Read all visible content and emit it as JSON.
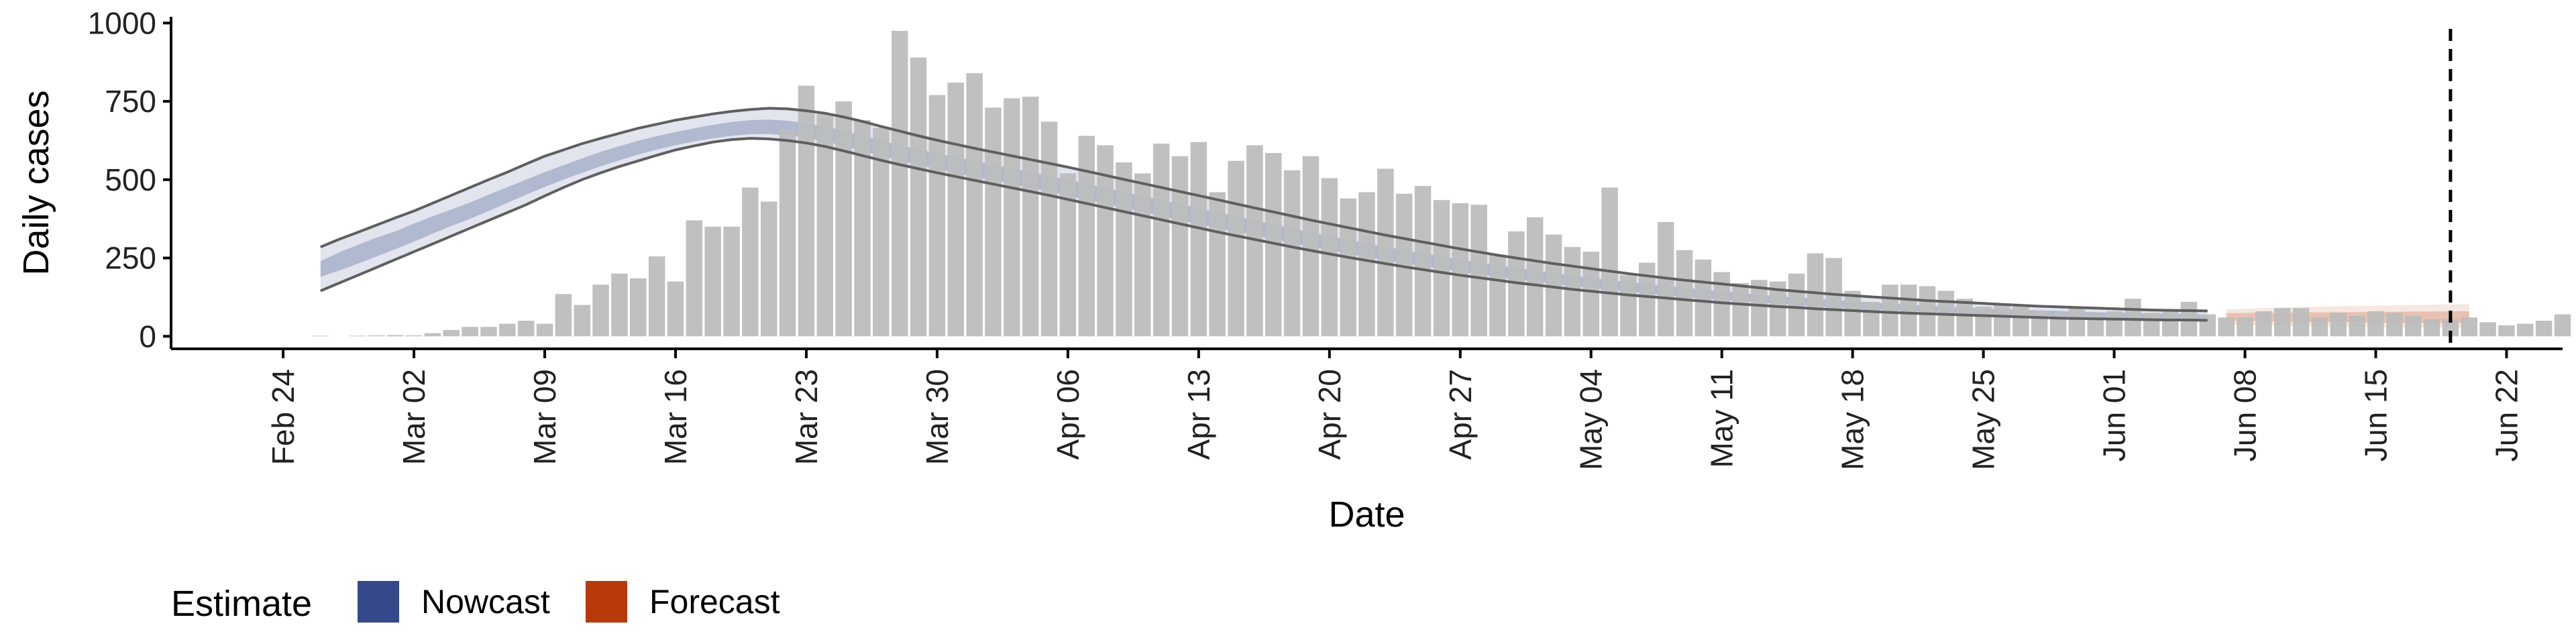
{
  "chart_data": {
    "type": "bar",
    "xlabel": "Date",
    "ylabel": "Daily cases",
    "ylim": [
      -40,
      1020
    ],
    "yticks": [
      0,
      250,
      500,
      750,
      1000
    ],
    "xlim": [
      "2020-02-18",
      "2020-06-25"
    ],
    "xticks": [
      {
        "date": "2020-02-24",
        "label": "Feb 24"
      },
      {
        "date": "2020-03-02",
        "label": "Mar 02"
      },
      {
        "date": "2020-03-09",
        "label": "Mar 09"
      },
      {
        "date": "2020-03-16",
        "label": "Mar 16"
      },
      {
        "date": "2020-03-23",
        "label": "Mar 23"
      },
      {
        "date": "2020-03-30",
        "label": "Mar 30"
      },
      {
        "date": "2020-04-06",
        "label": "Apr 06"
      },
      {
        "date": "2020-04-13",
        "label": "Apr 13"
      },
      {
        "date": "2020-04-20",
        "label": "Apr 20"
      },
      {
        "date": "2020-04-27",
        "label": "Apr 27"
      },
      {
        "date": "2020-05-04",
        "label": "May 04"
      },
      {
        "date": "2020-05-11",
        "label": "May 11"
      },
      {
        "date": "2020-05-18",
        "label": "May 18"
      },
      {
        "date": "2020-05-25",
        "label": "May 25"
      },
      {
        "date": "2020-06-01",
        "label": "Jun 01"
      },
      {
        "date": "2020-06-08",
        "label": "Jun 08"
      },
      {
        "date": "2020-06-15",
        "label": "Jun 15"
      },
      {
        "date": "2020-06-22",
        "label": "Jun 22"
      }
    ],
    "bar_start_date": "2020-02-26",
    "bars": [
      2,
      0,
      2,
      3,
      4,
      3,
      10,
      20,
      30,
      30,
      40,
      50,
      40,
      135,
      100,
      165,
      200,
      185,
      255,
      175,
      370,
      350,
      350,
      475,
      430,
      660,
      800,
      710,
      750,
      690,
      665,
      975,
      890,
      770,
      810,
      840,
      730,
      760,
      765,
      685,
      520,
      640,
      610,
      555,
      520,
      615,
      575,
      620,
      460,
      560,
      610,
      585,
      530,
      575,
      505,
      440,
      460,
      535,
      455,
      480,
      435,
      425,
      420,
      260,
      335,
      380,
      325,
      285,
      270,
      475,
      195,
      235,
      365,
      275,
      245,
      205,
      170,
      180,
      175,
      200,
      265,
      250,
      145,
      110,
      165,
      165,
      160,
      145,
      120,
      95,
      105,
      100,
      80,
      75,
      90,
      70,
      80,
      120,
      75,
      80,
      110,
      70,
      60,
      60,
      80,
      90,
      90,
      60,
      75,
      65,
      80,
      75,
      65,
      55,
      55,
      60,
      45,
      35,
      40,
      50,
      70
    ],
    "nowcast_start_date": "2020-02-26",
    "forecast_start_date": "2020-06-07",
    "estimate_end_date": "2020-06-20",
    "nowcast_median": [
      215,
      240,
      262,
      285,
      305,
      330,
      355,
      378,
      400,
      425,
      450,
      475,
      500,
      522,
      545,
      566,
      585,
      602,
      618,
      632,
      645,
      656,
      665,
      670,
      672,
      668,
      660,
      648,
      634,
      618,
      602,
      587,
      573,
      560,
      548,
      536,
      524,
      512,
      500,
      488,
      475,
      462,
      449,
      436,
      423,
      410,
      397,
      384,
      371,
      358,
      345,
      332,
      320,
      308,
      296,
      285,
      274,
      263,
      253,
      243,
      233,
      224,
      215,
      206,
      198,
      190,
      182,
      175,
      168,
      161,
      155,
      149,
      143,
      137,
      132,
      127,
      122,
      117,
      113,
      109,
      105,
      101,
      97,
      94,
      91,
      88,
      85,
      82,
      79,
      77,
      75,
      73,
      71,
      69,
      67,
      65,
      64,
      63,
      62,
      61,
      60,
      59
    ],
    "nowcast_inner_lower": [
      190,
      210,
      232,
      255,
      278,
      302,
      328,
      352,
      375,
      400,
      426,
      452,
      477,
      500,
      522,
      543,
      562,
      580,
      596,
      610,
      622,
      632,
      640,
      645,
      646,
      642,
      634,
      622,
      608,
      592,
      576,
      561,
      547,
      534,
      522,
      510,
      498,
      486,
      474,
      462,
      449,
      436,
      423,
      410,
      397,
      384,
      371,
      358,
      346,
      334,
      322,
      310,
      298,
      286,
      275,
      264,
      253,
      243,
      233,
      224,
      215,
      206,
      198,
      190,
      182,
      175,
      168,
      161,
      154,
      148,
      142,
      137,
      131,
      126,
      121,
      116,
      112,
      108,
      104,
      100,
      96,
      93,
      89,
      86,
      84,
      81,
      78,
      76,
      73,
      71,
      69,
      67,
      66,
      64,
      62,
      60,
      59,
      58,
      57,
      56,
      55,
      54
    ],
    "nowcast_inner_upper": [
      240,
      268,
      292,
      315,
      335,
      360,
      383,
      405,
      427,
      452,
      476,
      500,
      524,
      546,
      568,
      589,
      607,
      624,
      639,
      652,
      664,
      675,
      684,
      690,
      692,
      688,
      680,
      670,
      656,
      640,
      625,
      610,
      597,
      584,
      572,
      560,
      548,
      536,
      524,
      512,
      500,
      487,
      474,
      461,
      448,
      435,
      422,
      409,
      396,
      383,
      370,
      357,
      344,
      332,
      320,
      308,
      297,
      286,
      275,
      265,
      255,
      245,
      236,
      227,
      218,
      210,
      202,
      194,
      187,
      180,
      173,
      167,
      161,
      155,
      149,
      144,
      138,
      133,
      128,
      124,
      120,
      116,
      112,
      108,
      104,
      101,
      98,
      95,
      92,
      89,
      87,
      85,
      83,
      81,
      79,
      77,
      75,
      74,
      73,
      72,
      71,
      70
    ],
    "nowcast_lower": [
      145,
      170,
      195,
      220,
      245,
      270,
      295,
      320,
      345,
      370,
      395,
      420,
      448,
      475,
      500,
      522,
      542,
      560,
      578,
      595,
      608,
      620,
      628,
      632,
      630,
      625,
      617,
      606,
      592,
      577,
      562,
      548,
      535,
      522,
      510,
      498,
      486,
      474,
      462,
      450,
      437,
      424,
      411,
      398,
      385,
      372,
      359,
      346,
      333,
      321,
      309,
      297,
      285,
      274,
      263,
      252,
      242,
      232,
      222,
      213,
      204,
      195,
      187,
      179,
      171,
      164,
      157,
      150,
      144,
      138,
      132,
      127,
      122,
      117,
      112,
      107,
      103,
      99,
      95,
      92,
      88,
      85,
      82,
      79,
      76,
      74,
      72,
      70,
      68,
      66,
      64,
      62,
      60,
      58,
      57,
      56,
      55,
      54,
      53,
      52,
      52,
      51
    ],
    "nowcast_upper": [
      285,
      310,
      332,
      355,
      378,
      400,
      425,
      450,
      475,
      500,
      524,
      550,
      575,
      595,
      615,
      632,
      648,
      664,
      677,
      690,
      700,
      710,
      718,
      724,
      728,
      726,
      720,
      712,
      700,
      686,
      670,
      655,
      640,
      626,
      613,
      600,
      588,
      576,
      564,
      552,
      540,
      527,
      514,
      501,
      488,
      475,
      462,
      449,
      436,
      423,
      410,
      397,
      384,
      371,
      359,
      347,
      335,
      323,
      312,
      301,
      290,
      279,
      269,
      259,
      250,
      241,
      232,
      224,
      216,
      208,
      200,
      193,
      186,
      179,
      173,
      167,
      161,
      155,
      149,
      144,
      139,
      134,
      130,
      126,
      122,
      118,
      114,
      111,
      108,
      105,
      102,
      99,
      96,
      94,
      92,
      90,
      88,
      86,
      84,
      83,
      82,
      81
    ],
    "forecast_median": [
      62,
      61,
      61,
      60,
      60,
      60,
      59,
      59,
      59,
      58,
      58,
      58,
      57,
      57
    ],
    "forecast_inner_lower": [
      50,
      49,
      48,
      47,
      46,
      45,
      45,
      44,
      44,
      43,
      43,
      42,
      42,
      41
    ],
    "forecast_inner_upper": [
      74,
      74,
      75,
      75,
      76,
      76,
      77,
      77,
      78,
      78,
      79,
      79,
      80,
      80
    ],
    "forecast_lower": [
      38,
      36,
      35,
      34,
      33,
      32,
      31,
      30,
      29,
      29,
      28,
      28,
      27,
      27
    ],
    "forecast_upper": [
      86,
      88,
      90,
      92,
      94,
      95,
      96,
      97,
      98,
      99,
      100,
      101,
      102,
      103
    ],
    "vline_date": "2020-06-19",
    "legend": {
      "title": "Estimate",
      "position": "bottom-left",
      "items": [
        {
          "label": "Nowcast",
          "color": "#34488a"
        },
        {
          "label": "Forecast",
          "color": "#b83a0a"
        }
      ]
    },
    "colors": {
      "bar": "#bdbdbd",
      "nowcast": "#34488a",
      "forecast": "#b83a0a",
      "ci_line": "#5f5f5f"
    }
  }
}
